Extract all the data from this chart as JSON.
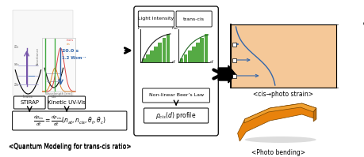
{
  "bg_color": "#ffffff",
  "left_caption": "<Quantum Modeling for trans-cis ratio>",
  "right_caption": "<Photo bending>",
  "top_right_caption": "<cis→photo strain>",
  "section1_label1": "STIRAP",
  "section1_label2": "Kinetic UV-Vis",
  "section2_box_label": "Non-linear Beer’s Law",
  "section2_top_left": "Light Intensity",
  "section2_top_right": "trans-cis",
  "section2_bottom": "ρ_{cis}(d) profile",
  "arrow_text1": "20.0 s",
  "arrow_text2": "1.2 Wcm⁻¹",
  "orange_color": "#E8820C",
  "light_orange": "#F5C898",
  "blue_color": "#3366AA",
  "green_color": "#55AA44",
  "purple_color": "#7755AA",
  "red_curve_color": "#DD4444",
  "orange_curve_color": "#DD8833"
}
